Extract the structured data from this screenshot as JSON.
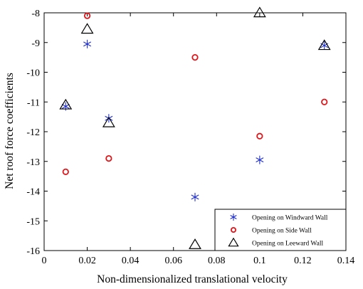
{
  "chart_data": {
    "type": "scatter",
    "title": "",
    "xlabel": "Non-dimensionalized translational velocity",
    "ylabel": "Net roof force coefficients",
    "xlim": [
      0,
      0.14
    ],
    "ylim": [
      -16,
      -8
    ],
    "x_ticks": [
      0,
      0.02,
      0.04,
      0.06,
      0.08,
      0.1,
      0.12,
      0.14
    ],
    "x_tick_labels": [
      "0",
      "0.02",
      "0.04",
      "0.06",
      "0.08",
      "0.1",
      "0.12",
      "0.14"
    ],
    "y_ticks": [
      -16,
      -15,
      -14,
      -13,
      -12,
      -11,
      -10,
      -9,
      -8
    ],
    "y_tick_labels": [
      "-16",
      "-15",
      "-14",
      "-13",
      "-12",
      "-11",
      "-10",
      "-9",
      "-8"
    ],
    "grid": false,
    "legend_position": "bottom-right",
    "series": [
      {
        "name": "Opening on Windward Wall",
        "marker": "asterisk",
        "color": "#1f2fd0",
        "x": [
          0.01,
          0.02,
          0.03,
          0.07,
          0.1,
          0.13
        ],
        "y": [
          -11.15,
          -9.05,
          -11.55,
          -14.2,
          -12.95,
          -9.1
        ]
      },
      {
        "name": "Opening on Side Wall",
        "marker": "circle",
        "color": "#e0161b",
        "x": [
          0.01,
          0.02,
          0.03,
          0.07,
          0.1,
          0.13
        ],
        "y": [
          -13.35,
          -8.1,
          -12.9,
          -9.5,
          -12.15,
          -11.0
        ]
      },
      {
        "name": "Opening on Leeward Wall",
        "marker": "triangle",
        "color": "#000000",
        "x": [
          0.01,
          0.02,
          0.03,
          0.07,
          0.1,
          0.13
        ],
        "y": [
          -11.1,
          -8.55,
          -11.7,
          -15.8,
          -8.0,
          -9.1
        ]
      }
    ]
  }
}
